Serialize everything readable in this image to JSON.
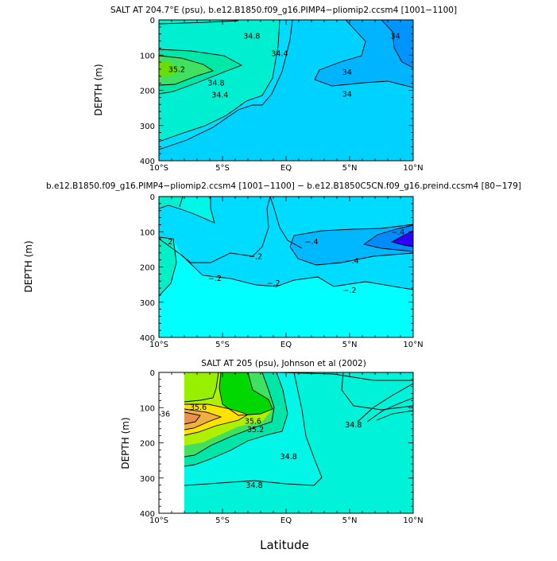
{
  "chart_data": [
    {
      "type": "contour",
      "title": "SALT AT 204.7°E (psu), b.e12.B1850.f09_g16.PIMP4−pliomip2.ccsm4 [1001−1100]",
      "ylabel": "DEPTH (m)",
      "xlabel": "",
      "x_ticks": [
        "10°S",
        "5°S",
        "EQ",
        "5°N",
        "10°N"
      ],
      "y_ticks": [
        "0",
        "100",
        "200",
        "300",
        "400"
      ],
      "xlim": [
        -10,
        10
      ],
      "ylim": [
        400,
        0
      ],
      "contour_labels": [
        {
          "text": "35.2",
          "lat": -8.6,
          "depth": 140
        },
        {
          "text": "34.8",
          "lat": -2.7,
          "depth": 45
        },
        {
          "text": "34.8",
          "lat": -5.5,
          "depth": 178
        },
        {
          "text": "34.4",
          "lat": -0.5,
          "depth": 95
        },
        {
          "text": "34.4",
          "lat": -5.2,
          "depth": 212
        },
        {
          "text": "34",
          "lat": 4.8,
          "depth": 148
        },
        {
          "text": "34",
          "lat": 4.8,
          "depth": 210
        },
        {
          "text": "34",
          "lat": 8.6,
          "depth": 45
        }
      ]
    },
    {
      "type": "contour",
      "title": "b.e12.B1850.f09_g16.PIMP4−pliomip2.ccsm4 [1001−1100] − b.e12.B1850C5CN.f09_g16.preind.ccsm4 [80−179]",
      "ylabel": "DEPTH (m)",
      "xlabel": "",
      "x_ticks": [
        "10°S",
        "5°S",
        "EQ",
        "5°N",
        "10°N"
      ],
      "y_ticks": [
        "0",
        "100",
        "200",
        "300",
        "400"
      ],
      "xlim": [
        -10,
        10
      ],
      "ylim": [
        400,
        0
      ],
      "contour_labels": [
        {
          "text": ".2",
          "lat": -9.2,
          "depth": 128
        },
        {
          "text": "−.2",
          "lat": -2.4,
          "depth": 170
        },
        {
          "text": "−.2",
          "lat": -5.6,
          "depth": 232
        },
        {
          "text": "−.2",
          "lat": -1.0,
          "depth": 245
        },
        {
          "text": "−.2",
          "lat": 5.0,
          "depth": 265
        },
        {
          "text": "−.4",
          "lat": 2.0,
          "depth": 128
        },
        {
          "text": "−.4",
          "lat": 5.2,
          "depth": 182
        },
        {
          "text": "−.4",
          "lat": 8.8,
          "depth": 100
        }
      ]
    },
    {
      "type": "contour",
      "title": "SALT AT 205 (psu), Johnson et al (2002)",
      "ylabel": "DEPTH (m)",
      "xlabel": "Latitude",
      "x_ticks": [
        "10°S",
        "5°S",
        "EQ",
        "5°N",
        "10°N"
      ],
      "y_ticks": [
        "0",
        "100",
        "200",
        "300",
        "400"
      ],
      "xlim": [
        -10,
        10
      ],
      "ylim": [
        400,
        0
      ],
      "contour_labels": [
        {
          "text": "36",
          "lat": -9.5,
          "depth": 118
        },
        {
          "text": "35.6",
          "lat": -6.9,
          "depth": 98
        },
        {
          "text": "35.6",
          "lat": -2.6,
          "depth": 138
        },
        {
          "text": "35.2",
          "lat": -2.4,
          "depth": 162
        },
        {
          "text": "34.8",
          "lat": 5.3,
          "depth": 148
        },
        {
          "text": "34.8",
          "lat": 0.2,
          "depth": 238
        },
        {
          "text": "34.8",
          "lat": -2.5,
          "depth": 320
        }
      ]
    }
  ]
}
